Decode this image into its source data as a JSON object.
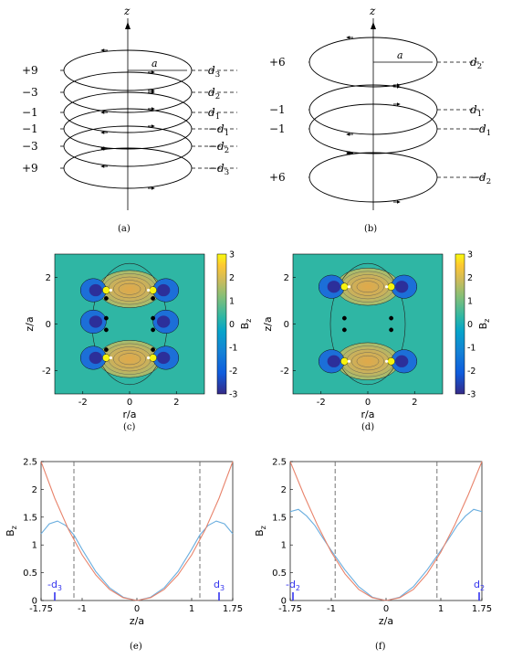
{
  "panels": {
    "a": {
      "caption": "(a)",
      "axis_label": "z",
      "radius_label": "a",
      "loops": [
        {
          "weight": "+9",
          "pos": "d",
          "sub": "3"
        },
        {
          "weight": "−3",
          "pos": "d",
          "sub": "2"
        },
        {
          "weight": "−1",
          "pos": "d",
          "sub": "1"
        },
        {
          "weight": "−1",
          "pos": "−d",
          "sub": "1"
        },
        {
          "weight": "−3",
          "pos": "−d",
          "sub": "2"
        },
        {
          "weight": "+9",
          "pos": "−d",
          "sub": "3"
        }
      ]
    },
    "b": {
      "caption": "(b)",
      "axis_label": "z",
      "radius_label": "a",
      "loops": [
        {
          "weight": "+6",
          "pos": "d",
          "sub": "2"
        },
        {
          "weight": "−1",
          "pos": "d",
          "sub": "1"
        },
        {
          "weight": "−1",
          "pos": "−d",
          "sub": "1"
        },
        {
          "weight": "+6",
          "pos": "−d",
          "sub": "2"
        }
      ]
    },
    "c": {
      "caption": "(c)",
      "xlabel": "r/a",
      "ylabel": "z/a",
      "xticks": [
        "-2",
        "0",
        "2"
      ],
      "yticks": [
        "2",
        "0",
        "-2"
      ],
      "colorbar_label": "B",
      "colorbar_label_sub": "z",
      "colorbar_ticks": [
        "3",
        "2",
        "1",
        "0",
        "-1",
        "-2",
        "-3"
      ]
    },
    "d": {
      "caption": "(d)",
      "xlabel": "r/a",
      "ylabel": "z/a",
      "xticks": [
        "-2",
        "0",
        "2"
      ],
      "yticks": [
        "2",
        "0",
        "-2"
      ],
      "colorbar_label": "B",
      "colorbar_label_sub": "z",
      "colorbar_ticks": [
        "3",
        "2",
        "1",
        "0",
        "-1",
        "-2",
        "-3"
      ]
    },
    "e": {
      "caption": "(e)",
      "xlabel": "z/a",
      "ylabel": "B",
      "ylabel_sub": "z",
      "xticks": [
        "-1.75",
        "-1",
        "0",
        "1",
        "1.75"
      ],
      "yticks": [
        "2.5",
        "2",
        "1.5",
        "1",
        "0.5",
        "0"
      ],
      "marker_left": "-d",
      "marker_left_sub": "3",
      "marker_right": "d",
      "marker_right_sub": "3"
    },
    "f": {
      "caption": "(f)",
      "xlabel": "z/a",
      "ylabel": "B",
      "ylabel_sub": "z",
      "xticks": [
        "-1.75",
        "-1",
        "0",
        "1",
        "1.75"
      ],
      "yticks": [
        "2.5",
        "2",
        "1.5",
        "1",
        "0.5",
        "0"
      ],
      "marker_left": "-d",
      "marker_left_sub": "2",
      "marker_right": "d",
      "marker_right_sub": "2"
    }
  },
  "colors": {
    "blue_curve": "#6aaedf",
    "orange_curve": "#e8836b",
    "marker": "#3333ee",
    "contour_bg": "#2fb6a4"
  },
  "chart_data": [
    {
      "type": "line",
      "panel": "e",
      "xlabel": "z/a",
      "ylabel": "Bz",
      "xlim": [
        -1.75,
        1.75
      ],
      "ylim": [
        0,
        2.5
      ],
      "d": 1.5,
      "dashed_lines_x": [
        -1.15,
        1.15
      ],
      "series": [
        {
          "x": [
            -1.75,
            -1.6,
            -1.45,
            -1.3,
            -1.15,
            -1.0,
            -0.75,
            -0.5,
            -0.25,
            0,
            0.25,
            0.5,
            0.75,
            1.0,
            1.15,
            1.3,
            1.45,
            1.6,
            1.75
          ],
          "y": [
            1.2,
            1.38,
            1.43,
            1.35,
            1.18,
            0.92,
            0.52,
            0.23,
            0.06,
            0,
            0.06,
            0.23,
            0.52,
            0.92,
            1.18,
            1.35,
            1.43,
            1.38,
            1.2
          ]
        },
        {
          "x": [
            -1.75,
            -1.5,
            -1.25,
            -1.0,
            -0.75,
            -0.5,
            -0.25,
            0,
            0.25,
            0.5,
            0.75,
            1.0,
            1.25,
            1.5,
            1.75
          ],
          "y": [
            2.5,
            1.84,
            1.28,
            0.82,
            0.46,
            0.2,
            0.05,
            0,
            0.05,
            0.2,
            0.46,
            0.82,
            1.28,
            1.84,
            2.5
          ]
        }
      ]
    },
    {
      "type": "line",
      "panel": "f",
      "xlabel": "z/a",
      "ylabel": "Bz",
      "xlim": [
        -1.75,
        1.75
      ],
      "ylim": [
        0,
        2.5
      ],
      "d": 1.7,
      "dashed_lines_x": [
        -0.93,
        0.93
      ],
      "series": [
        {
          "x": [
            -1.75,
            -1.6,
            -1.45,
            -1.3,
            -1.15,
            -1.0,
            -0.75,
            -0.5,
            -0.25,
            0,
            0.25,
            0.5,
            0.75,
            1.0,
            1.15,
            1.3,
            1.45,
            1.6,
            1.75
          ],
          "y": [
            1.6,
            1.64,
            1.52,
            1.35,
            1.12,
            0.9,
            0.55,
            0.25,
            0.06,
            0,
            0.06,
            0.25,
            0.55,
            0.9,
            1.12,
            1.35,
            1.52,
            1.64,
            1.6
          ]
        },
        {
          "x": [
            -1.75,
            -1.5,
            -1.25,
            -1.0,
            -0.75,
            -0.5,
            -0.25,
            0,
            0.25,
            0.5,
            0.75,
            1.0,
            1.25,
            1.5,
            1.75
          ],
          "y": [
            2.5,
            1.9,
            1.35,
            0.87,
            0.48,
            0.2,
            0.05,
            0,
            0.05,
            0.2,
            0.48,
            0.87,
            1.35,
            1.9,
            2.5
          ]
        }
      ]
    }
  ]
}
